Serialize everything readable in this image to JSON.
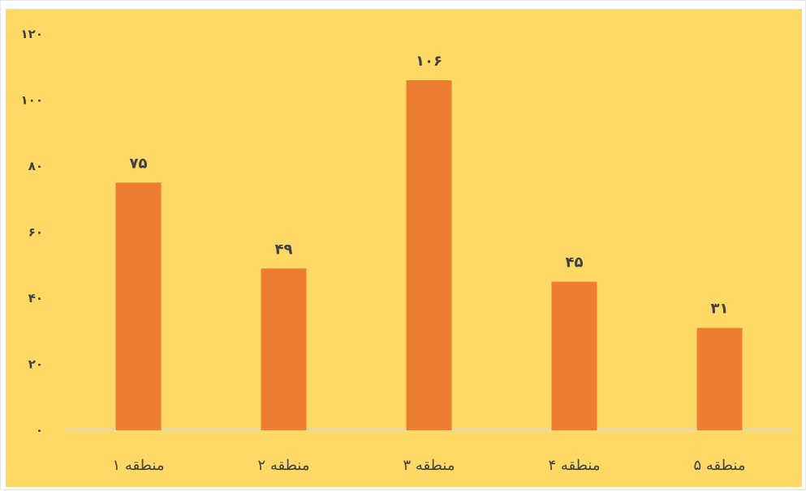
{
  "colors": {
    "plot_background": "#FFD966",
    "bar": "#ED7D31",
    "axis_line": "#D9D9D9",
    "text": "#404040"
  },
  "chart_data": {
    "type": "bar",
    "categories": [
      "منطقه ۱",
      "منطقه ۲",
      "منطقه ۳",
      "منطقه ۴",
      "منطقه ۵"
    ],
    "values": [
      75,
      49,
      106,
      45,
      31
    ],
    "value_labels": [
      "۷۵",
      "۴۹",
      "۱۰۶",
      "۴۵",
      "۳۱"
    ],
    "ylim": [
      0,
      120
    ],
    "y_ticks": [
      0,
      20,
      40,
      60,
      80,
      100,
      120
    ],
    "y_tick_labels": [
      "۰",
      "۲۰",
      "۴۰",
      "۶۰",
      "۸۰",
      "۱۰۰",
      "۱۲۰"
    ],
    "grid": false,
    "legend": "none"
  }
}
